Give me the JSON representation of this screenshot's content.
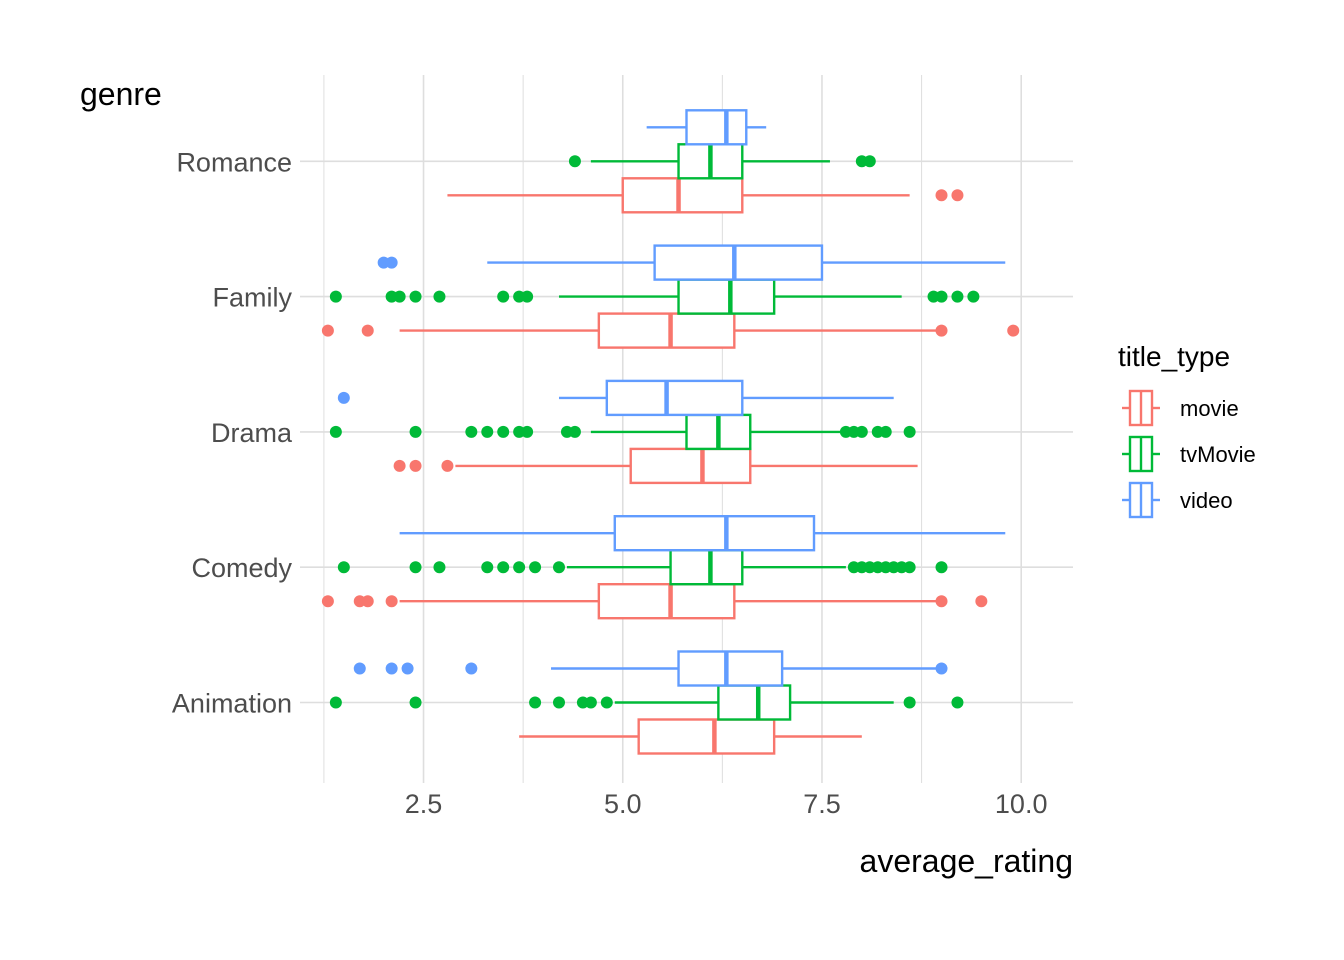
{
  "chart_data": {
    "type": "boxplot",
    "orientation": "horizontal",
    "xlabel": "average_rating",
    "ylabel": "genre",
    "xlim": [
      0.95,
      10.65
    ],
    "x_ticks": [
      2.5,
      5.0,
      7.5,
      10.0
    ],
    "x_tick_labels": [
      "2.5",
      "5.0",
      "7.5",
      "10.0"
    ],
    "categories": [
      "Animation",
      "Comedy",
      "Drama",
      "Family",
      "Romance"
    ],
    "grid": true,
    "legend": {
      "title": "title_type",
      "placement": "right",
      "entries": [
        "movie",
        "tvMovie",
        "video"
      ]
    },
    "colors": {
      "movie": "#F8766D",
      "tvMovie": "#00BA38",
      "video": "#619CFF"
    },
    "series": [
      {
        "name": "movie",
        "boxes": [
          {
            "genre": "Animation",
            "whisker_low": 3.7,
            "q1": 5.2,
            "median": 6.15,
            "q3": 6.9,
            "whisker_high": 8.0,
            "outliers": []
          },
          {
            "genre": "Comedy",
            "whisker_low": 2.2,
            "q1": 4.7,
            "median": 5.6,
            "q3": 6.4,
            "whisker_high": 9.0,
            "outliers": [
              1.3,
              1.7,
              1.8,
              2.1,
              9.0,
              9.5
            ]
          },
          {
            "genre": "Drama",
            "whisker_low": 2.9,
            "q1": 5.1,
            "median": 6.0,
            "q3": 6.6,
            "whisker_high": 8.7,
            "outliers": [
              2.2,
              2.4,
              2.8
            ]
          },
          {
            "genre": "Family",
            "whisker_low": 2.2,
            "q1": 4.7,
            "median": 5.6,
            "q3": 6.4,
            "whisker_high": 9.0,
            "outliers": [
              1.3,
              1.8,
              9.0,
              9.9
            ]
          },
          {
            "genre": "Romance",
            "whisker_low": 2.8,
            "q1": 5.0,
            "median": 5.7,
            "q3": 6.5,
            "whisker_high": 8.6,
            "outliers": [
              9.0,
              9.2
            ]
          }
        ]
      },
      {
        "name": "tvMovie",
        "boxes": [
          {
            "genre": "Animation",
            "whisker_low": 4.9,
            "q1": 6.2,
            "median": 6.7,
            "q3": 7.1,
            "whisker_high": 8.4,
            "outliers": [
              1.4,
              2.4,
              3.9,
              4.2,
              4.5,
              4.6,
              4.8,
              8.6,
              9.2
            ]
          },
          {
            "genre": "Comedy",
            "whisker_low": 4.3,
            "q1": 5.6,
            "median": 6.1,
            "q3": 6.5,
            "whisker_high": 7.8,
            "outliers": [
              1.5,
              2.4,
              2.7,
              3.3,
              3.5,
              3.7,
              3.9,
              4.2,
              7.9,
              8.0,
              8.1,
              8.2,
              8.3,
              8.4,
              8.5,
              8.6,
              9.0
            ]
          },
          {
            "genre": "Drama",
            "whisker_low": 4.6,
            "q1": 5.8,
            "median": 6.2,
            "q3": 6.6,
            "whisker_high": 7.8,
            "outliers": [
              1.4,
              2.4,
              3.1,
              3.3,
              3.5,
              3.7,
              3.8,
              4.3,
              4.4,
              7.8,
              7.9,
              8.0,
              8.2,
              8.3,
              8.6
            ]
          },
          {
            "genre": "Family",
            "whisker_low": 4.2,
            "q1": 5.7,
            "median": 6.35,
            "q3": 6.9,
            "whisker_high": 8.5,
            "outliers": [
              1.4,
              2.1,
              2.2,
              2.4,
              2.7,
              3.5,
              3.7,
              3.8,
              8.9,
              9.0,
              9.2,
              9.4
            ]
          },
          {
            "genre": "Romance",
            "whisker_low": 4.6,
            "q1": 5.7,
            "median": 6.1,
            "q3": 6.5,
            "whisker_high": 7.6,
            "outliers": [
              4.4,
              8.0,
              8.1
            ]
          }
        ]
      },
      {
        "name": "video",
        "boxes": [
          {
            "genre": "Animation",
            "whisker_low": 4.1,
            "q1": 5.7,
            "median": 6.3,
            "q3": 7.0,
            "whisker_high": 9.0,
            "outliers": [
              1.7,
              2.1,
              2.3,
              3.1,
              9.0
            ]
          },
          {
            "genre": "Comedy",
            "whisker_low": 2.2,
            "q1": 4.9,
            "median": 6.3,
            "q3": 7.4,
            "whisker_high": 9.8,
            "outliers": []
          },
          {
            "genre": "Drama",
            "whisker_low": 4.2,
            "q1": 4.8,
            "median": 5.55,
            "q3": 6.5,
            "whisker_high": 8.4,
            "outliers": [
              1.5
            ]
          },
          {
            "genre": "Family",
            "whisker_low": 3.3,
            "q1": 5.4,
            "median": 6.4,
            "q3": 7.5,
            "whisker_high": 9.8,
            "outliers": [
              2.0,
              2.1
            ]
          },
          {
            "genre": "Romance",
            "whisker_low": 5.3,
            "q1": 5.8,
            "median": 6.3,
            "q3": 6.55,
            "whisker_high": 6.8,
            "outliers": []
          }
        ]
      }
    ]
  }
}
